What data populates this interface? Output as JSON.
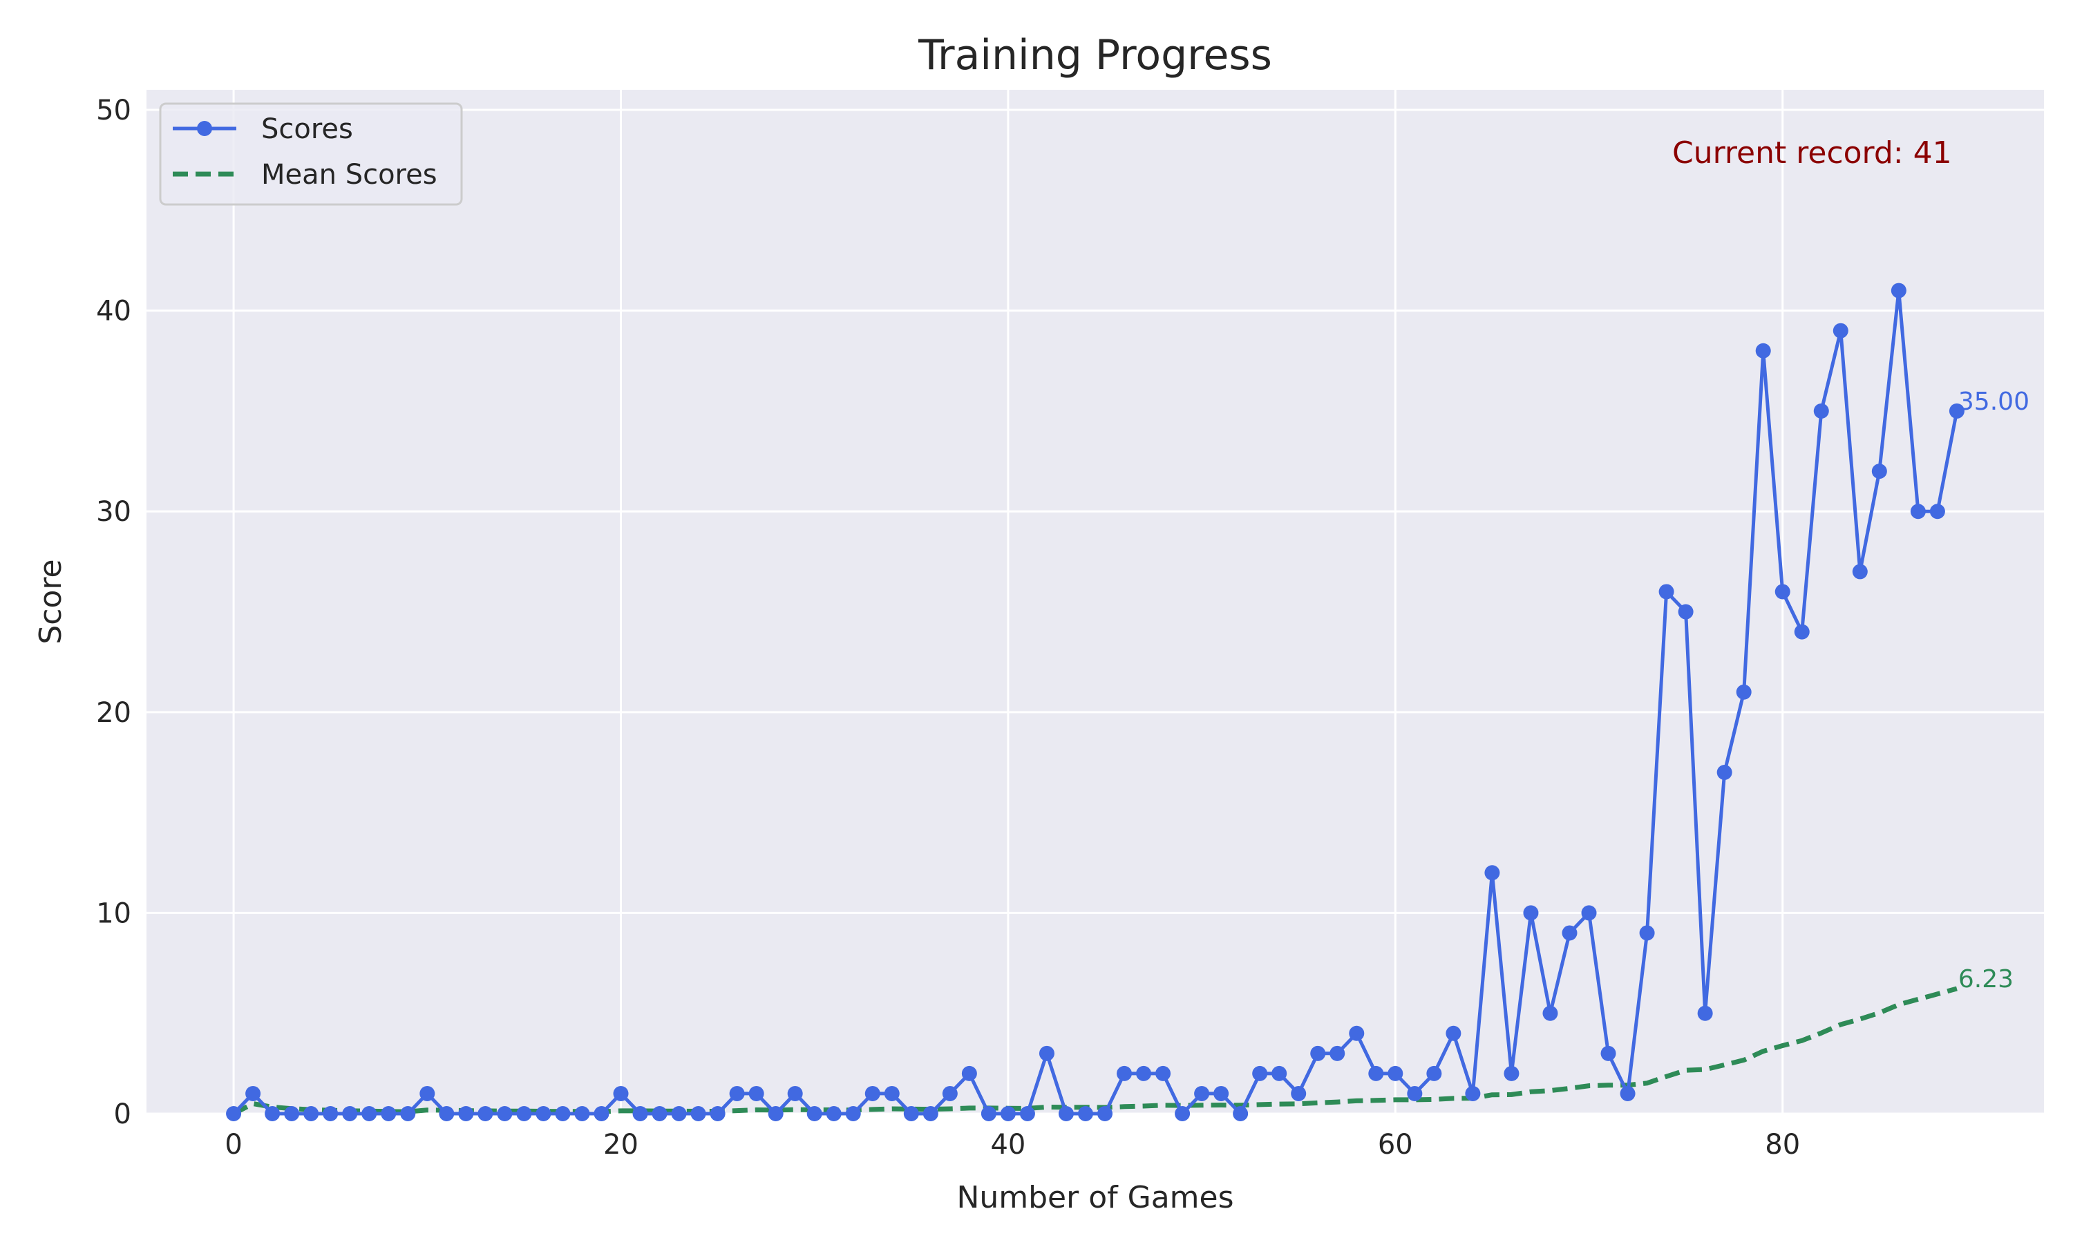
{
  "chart_data": {
    "type": "line",
    "title": "Training Progress",
    "xlabel": "Number of Games",
    "ylabel": "Score",
    "xlim": [
      -4.5,
      93.5
    ],
    "ylim": [
      0,
      51
    ],
    "xticks": [
      0,
      20,
      40,
      60,
      80
    ],
    "yticks": [
      0,
      10,
      20,
      30,
      40,
      50
    ],
    "grid": true,
    "legend_position": "top-left",
    "annotation": "Current record: 41",
    "colors": {
      "background": "#eaeaf2",
      "grid": "#ffffff",
      "scores": "#4169e1",
      "mean": "#2e8b57",
      "record": "#8b0000"
    },
    "x": [
      0,
      1,
      2,
      3,
      4,
      5,
      6,
      7,
      8,
      9,
      10,
      11,
      12,
      13,
      14,
      15,
      16,
      17,
      18,
      19,
      20,
      21,
      22,
      23,
      24,
      25,
      26,
      27,
      28,
      29,
      30,
      31,
      32,
      33,
      34,
      35,
      36,
      37,
      38,
      39,
      40,
      41,
      42,
      43,
      44,
      45,
      46,
      47,
      48,
      49,
      50,
      51,
      52,
      53,
      54,
      55,
      56,
      57,
      58,
      59,
      60,
      61,
      62,
      63,
      64,
      65,
      66,
      67,
      68,
      69,
      70,
      71,
      72,
      73,
      74,
      75,
      76,
      77,
      78,
      79,
      80,
      81,
      82,
      83,
      84,
      85,
      86,
      87,
      88,
      89
    ],
    "series": [
      {
        "name": "Scores",
        "style": "solid line with circle markers",
        "values": [
          0,
          1,
          0,
          0,
          0,
          0,
          0,
          0,
          0,
          0,
          1,
          0,
          0,
          0,
          0,
          0,
          0,
          0,
          0,
          0,
          1,
          0,
          0,
          0,
          0,
          0,
          1,
          1,
          0,
          1,
          0,
          0,
          0,
          1,
          1,
          0,
          0,
          1,
          2,
          0,
          0,
          0,
          3,
          0,
          0,
          0,
          2,
          2,
          2,
          0,
          1,
          1,
          0,
          2,
          2,
          1,
          3,
          3,
          4,
          2,
          2,
          1,
          2,
          4,
          1,
          12,
          2,
          10,
          5,
          9,
          10,
          3,
          1,
          9,
          26,
          25,
          5,
          17,
          21,
          38,
          26,
          24,
          35,
          39,
          27,
          32,
          41,
          30,
          30,
          35
        ],
        "end_label": "35.00"
      },
      {
        "name": "Mean Scores",
        "style": "dashed line",
        "values": [
          0,
          0.5,
          0.33,
          0.25,
          0.2,
          0.17,
          0.14,
          0.13,
          0.11,
          0.1,
          0.18,
          0.17,
          0.15,
          0.14,
          0.13,
          0.13,
          0.12,
          0.11,
          0.11,
          0.1,
          0.14,
          0.14,
          0.13,
          0.13,
          0.12,
          0.12,
          0.15,
          0.19,
          0.18,
          0.2,
          0.19,
          0.19,
          0.18,
          0.21,
          0.24,
          0.23,
          0.22,
          0.24,
          0.28,
          0.28,
          0.27,
          0.26,
          0.33,
          0.32,
          0.32,
          0.31,
          0.35,
          0.38,
          0.42,
          0.41,
          0.42,
          0.43,
          0.42,
          0.45,
          0.48,
          0.49,
          0.54,
          0.58,
          0.64,
          0.66,
          0.69,
          0.69,
          0.71,
          0.76,
          0.77,
          0.94,
          0.95,
          1.09,
          1.15,
          1.26,
          1.39,
          1.42,
          1.42,
          1.52,
          1.85,
          2.16,
          2.2,
          2.43,
          2.67,
          3.11,
          3.39,
          3.64,
          4.02,
          4.44,
          4.71,
          5.02,
          5.43,
          5.7,
          5.96,
          6.23
        ],
        "end_label": "6.23"
      }
    ]
  }
}
